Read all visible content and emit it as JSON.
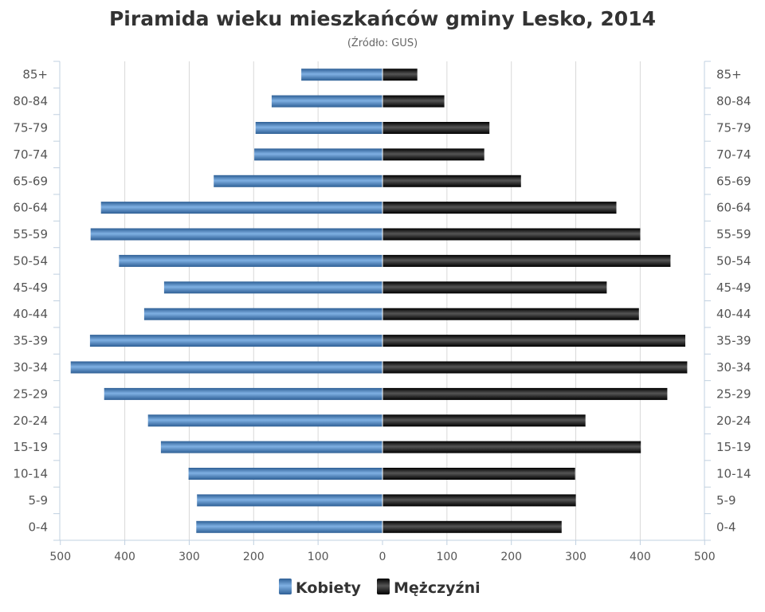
{
  "chart_data": {
    "type": "bar",
    "orientation": "horizontal",
    "title": "Piramida wieku mieszkańców gminy Lesko, 2014",
    "subtitle": "(Źródło: GUS)",
    "categories": [
      "85+",
      "80-84",
      "75-79",
      "70-74",
      "65-69",
      "60-64",
      "55-59",
      "50-54",
      "45-49",
      "40-44",
      "35-39",
      "30-34",
      "25-29",
      "20-24",
      "15-19",
      "10-14",
      "5-9",
      "0-4"
    ],
    "series": [
      {
        "name": "Kobiety",
        "color": "#4a86c5",
        "side": "left",
        "values": [
          126,
          172,
          197,
          199,
          262,
          437,
          453,
          409,
          339,
          370,
          454,
          484,
          432,
          364,
          344,
          301,
          288,
          289
        ]
      },
      {
        "name": "Mężczyźni",
        "color": "#1a1a1a",
        "side": "right",
        "values": [
          54,
          96,
          166,
          158,
          215,
          363,
          400,
          447,
          348,
          398,
          470,
          473,
          442,
          315,
          401,
          299,
          300,
          278
        ]
      }
    ],
    "x_ticks": [
      "500",
      "400",
      "300",
      "200",
      "100",
      "0",
      "100",
      "200",
      "300",
      "400",
      "500"
    ],
    "xlim": [
      -500,
      500
    ],
    "grid": true,
    "legend_position": "bottom-center"
  }
}
